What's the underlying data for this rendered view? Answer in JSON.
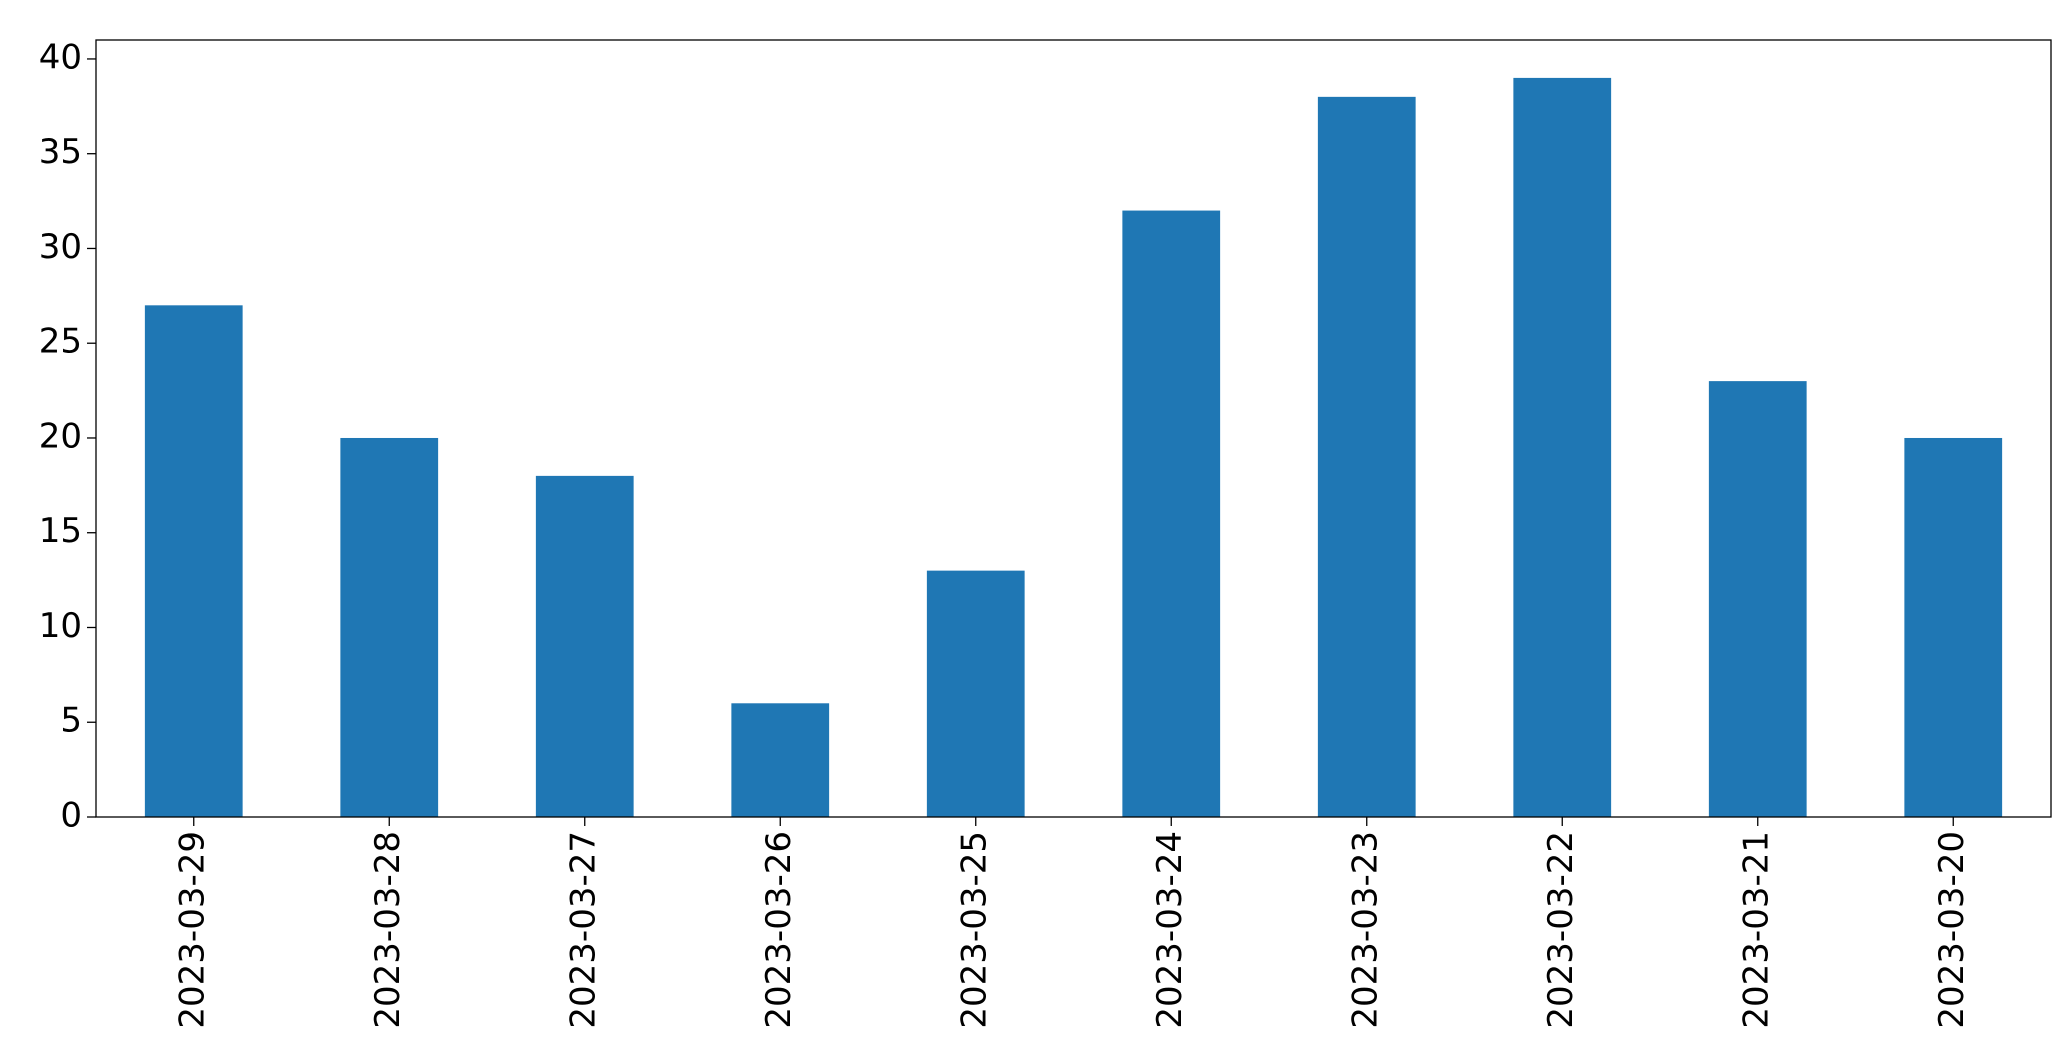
{
  "chart_data": {
    "type": "bar",
    "categories": [
      "2023-03-29",
      "2023-03-28",
      "2023-03-27",
      "2023-03-26",
      "2023-03-25",
      "2023-03-24",
      "2023-03-23",
      "2023-03-22",
      "2023-03-21",
      "2023-03-20"
    ],
    "values": [
      27,
      20,
      18,
      6,
      13,
      32,
      38,
      39,
      23,
      20
    ],
    "color": "#1f77b4",
    "ylim": [
      0,
      41
    ],
    "yticks": [
      0,
      5,
      10,
      15,
      20,
      25,
      30,
      35,
      40
    ],
    "grid": false
  }
}
